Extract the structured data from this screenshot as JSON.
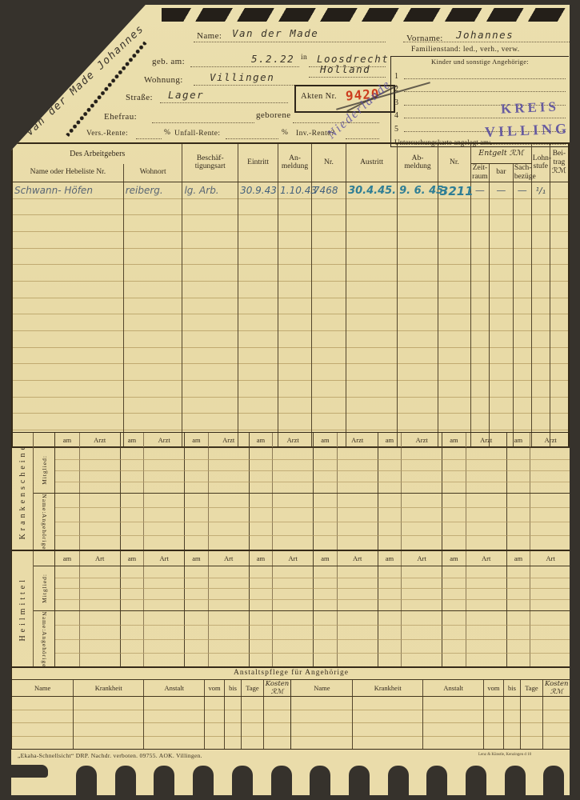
{
  "colors": {
    "card": "#e9dcab",
    "ink": "#33291c",
    "red": "#cc3c1e",
    "stamp": "#5d52a0",
    "hand_gray": "#5a6673",
    "hand_blue": "#44617c",
    "hand_teal": "#2f7e95"
  },
  "corner": {
    "diagonal_name": "Van der Made Johannes"
  },
  "identity": {
    "name_label": "Name:",
    "name_value": "Van der Made",
    "vorname_label": "Vorname:",
    "vorname_value": "Johannes",
    "geb_label": "geb. am:",
    "geb_value": "5.2.22",
    "in_label": "in",
    "birth_place": "Loosdrecht",
    "birth_country": "Holland",
    "wohnung_label": "Wohnung:",
    "wohnung_value": "Villingen",
    "strasse_label": "Straße:",
    "strasse_value": "Lager",
    "akten_label": "Akten Nr.",
    "akten_value": "9420",
    "niederlande_stamp": "Niederlande",
    "familienstand": "Familienstand: led., verh., verw.",
    "dependents_title": "Kinder und sonstige Angehörige:",
    "dependents_rows": [
      "1",
      "2",
      "3",
      "4",
      "5"
    ],
    "untersuchung": "Untersuchungskarte angelegt am:",
    "kreis_stamp_1": "KREIS",
    "kreis_stamp_2": "VILLINGEN",
    "ehefrau_label": "Ehefrau:",
    "geborene_label": "geborene",
    "vers_label": "Vers.-Rente:",
    "pct": "%",
    "unfall_label": "Unfall-Rente:",
    "inv_label": "Inv.-Rente?"
  },
  "employment": {
    "group_arbeitgeber": "Des Arbeitgebers",
    "h_name": "Name oder Hebeliste Nr.",
    "h_wohnort": "Wohnort",
    "h_beschaeftigung": "Beschäf- tigungsart",
    "h_eintritt": "Eintritt",
    "h_anmeldung": "An- meldung",
    "h_nr1": "Nr.",
    "h_austritt": "Austritt",
    "h_abmeldung": "Ab- meldung",
    "h_nr2": "Nr.",
    "h_entgelt": "Entgelt ℛℳ",
    "h_zeitraum": "Zeit- raum",
    "h_bar": "bar",
    "h_sachbezuege": "Sach- bezüge",
    "h_lohnstufe": "Lohn- stufe",
    "h_beitrag": "Bei- trag ℛℳ",
    "entry": {
      "name": "Schwann- Höfen",
      "wohnort": "reiberg.",
      "art": "lg. Arb.",
      "eintritt": "30.9.43",
      "anmeldung": "1.10.43",
      "nr1": "7468",
      "austritt": "30.4.45.",
      "abmeldung": "9. 6. 45.",
      "nr2": "3211",
      "zeitraum": "—",
      "bar": "—",
      "sachbezuege": "—",
      "lohnstufe": "¹/₁",
      "beitrag": ""
    }
  },
  "krankenscheine": {
    "title": "Krankenscheine",
    "mitglied": "Mitglied:",
    "angehoerige_1": "Angehörige",
    "angehoerige_2": "Name:",
    "col_am": "am",
    "col_type": "Arzt"
  },
  "heilmittel": {
    "title": "Heilmittel",
    "mitglied": "Mitglied:",
    "angehoerige_1": "Angehörige",
    "angehoerige_2": "Name:",
    "col_am": "am",
    "col_type": "Art"
  },
  "anstaltspflege": {
    "title": "Anstaltspflege für Angehörige",
    "cols": [
      "Name",
      "Krankheit",
      "Anstalt",
      "vom",
      "bis",
      "Tage",
      "Kosten ℛℳ",
      "Name",
      "Krankheit",
      "Anstalt",
      "vom",
      "bis",
      "Tage",
      "Kosten ℛℳ"
    ]
  },
  "footer": {
    "left": "„Ekaha-Schnellsicht“ DRP.   Nachdr. verboten.   09755.   AOK. Villingen.",
    "right": "Lenz & Künstle, Kenzingen d 10"
  }
}
